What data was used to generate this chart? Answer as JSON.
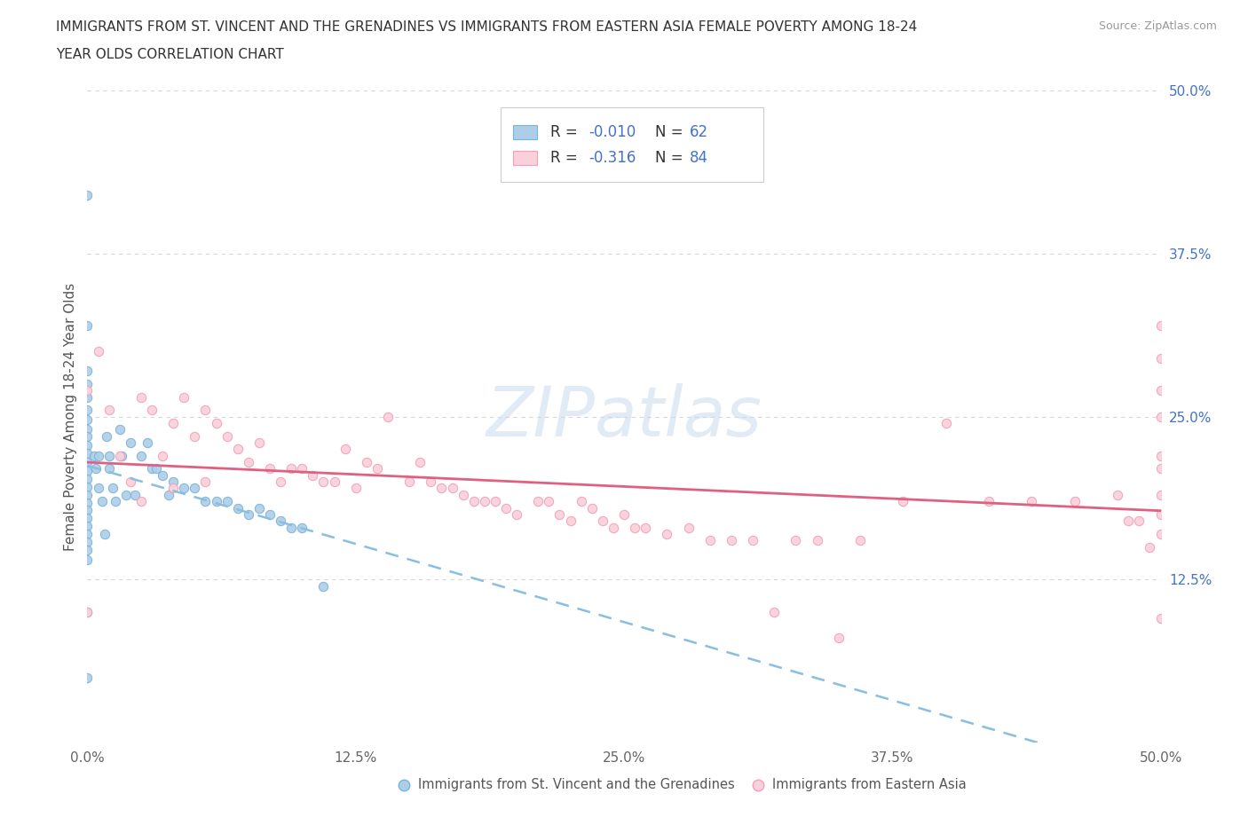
{
  "title_line1": "IMMIGRANTS FROM ST. VINCENT AND THE GRENADINES VS IMMIGRANTS FROM EASTERN ASIA FEMALE POVERTY AMONG 18-24",
  "title_line2": "YEAR OLDS CORRELATION CHART",
  "source_text": "Source: ZipAtlas.com",
  "ylabel": "Female Poverty Among 18-24 Year Olds",
  "xlim": [
    0.0,
    0.5
  ],
  "ylim": [
    0.0,
    0.5
  ],
  "xticks": [
    0.0,
    0.125,
    0.25,
    0.375,
    0.5
  ],
  "xticklabels": [
    "0.0%",
    "12.5%",
    "25.0%",
    "37.5%",
    "50.0%"
  ],
  "ytick_positions": [
    0.125,
    0.25,
    0.375,
    0.5
  ],
  "ytick_labels": [
    "12.5%",
    "25.0%",
    "37.5%",
    "50.0%"
  ],
  "watermark": "ZIPatlas",
  "color_blue": "#7ab3d8",
  "color_blue_fill": "#aecde8",
  "color_pink": "#f0a0b8",
  "color_pink_fill": "#fad0da",
  "color_trend_blue": "#88bfe0",
  "color_trend_pink": "#e06080",
  "background_color": "#ffffff",
  "grid_color": "#d8d8d8",
  "blue_x": [
    0.0,
    0.0,
    0.0,
    0.0,
    0.0,
    0.0,
    0.0,
    0.0,
    0.0,
    0.0,
    0.0,
    0.0,
    0.0,
    0.0,
    0.0,
    0.0,
    0.0,
    0.0,
    0.0,
    0.0,
    0.0,
    0.0,
    0.0,
    0.0,
    0.0,
    0.0,
    0.003,
    0.004,
    0.005,
    0.005,
    0.007,
    0.008,
    0.009,
    0.01,
    0.01,
    0.012,
    0.013,
    0.015,
    0.016,
    0.018,
    0.02,
    0.022,
    0.025,
    0.028,
    0.03,
    0.032,
    0.035,
    0.038,
    0.04,
    0.045,
    0.05,
    0.055,
    0.06,
    0.065,
    0.07,
    0.075,
    0.08,
    0.085,
    0.09,
    0.095,
    0.1,
    0.11
  ],
  "blue_y": [
    0.42,
    0.32,
    0.285,
    0.275,
    0.265,
    0.255,
    0.248,
    0.24,
    0.235,
    0.228,
    0.222,
    0.215,
    0.208,
    0.202,
    0.196,
    0.19,
    0.184,
    0.178,
    0.172,
    0.166,
    0.16,
    0.154,
    0.148,
    0.14,
    0.1,
    0.05,
    0.22,
    0.21,
    0.22,
    0.195,
    0.185,
    0.16,
    0.235,
    0.22,
    0.21,
    0.195,
    0.185,
    0.24,
    0.22,
    0.19,
    0.23,
    0.19,
    0.22,
    0.23,
    0.21,
    0.21,
    0.205,
    0.19,
    0.2,
    0.195,
    0.195,
    0.185,
    0.185,
    0.185,
    0.18,
    0.175,
    0.18,
    0.175,
    0.17,
    0.165,
    0.165,
    0.12
  ],
  "pink_x": [
    0.0,
    0.0,
    0.005,
    0.01,
    0.015,
    0.02,
    0.025,
    0.025,
    0.03,
    0.035,
    0.04,
    0.04,
    0.045,
    0.05,
    0.055,
    0.055,
    0.06,
    0.065,
    0.07,
    0.075,
    0.08,
    0.085,
    0.09,
    0.095,
    0.1,
    0.105,
    0.11,
    0.115,
    0.12,
    0.125,
    0.13,
    0.135,
    0.14,
    0.15,
    0.155,
    0.16,
    0.165,
    0.17,
    0.175,
    0.18,
    0.185,
    0.19,
    0.195,
    0.2,
    0.21,
    0.215,
    0.22,
    0.225,
    0.23,
    0.235,
    0.24,
    0.245,
    0.25,
    0.255,
    0.26,
    0.27,
    0.28,
    0.29,
    0.3,
    0.31,
    0.32,
    0.33,
    0.34,
    0.35,
    0.36,
    0.38,
    0.4,
    0.42,
    0.44,
    0.46,
    0.48,
    0.485,
    0.49,
    0.495,
    0.5,
    0.5,
    0.5,
    0.5,
    0.5,
    0.5,
    0.5,
    0.5,
    0.5,
    0.5
  ],
  "pink_y": [
    0.27,
    0.1,
    0.3,
    0.255,
    0.22,
    0.2,
    0.265,
    0.185,
    0.255,
    0.22,
    0.245,
    0.195,
    0.265,
    0.235,
    0.255,
    0.2,
    0.245,
    0.235,
    0.225,
    0.215,
    0.23,
    0.21,
    0.2,
    0.21,
    0.21,
    0.205,
    0.2,
    0.2,
    0.225,
    0.195,
    0.215,
    0.21,
    0.25,
    0.2,
    0.215,
    0.2,
    0.195,
    0.195,
    0.19,
    0.185,
    0.185,
    0.185,
    0.18,
    0.175,
    0.185,
    0.185,
    0.175,
    0.17,
    0.185,
    0.18,
    0.17,
    0.165,
    0.175,
    0.165,
    0.165,
    0.16,
    0.165,
    0.155,
    0.155,
    0.155,
    0.1,
    0.155,
    0.155,
    0.08,
    0.155,
    0.185,
    0.245,
    0.185,
    0.185,
    0.185,
    0.19,
    0.17,
    0.17,
    0.15,
    0.32,
    0.295,
    0.27,
    0.25,
    0.22,
    0.21,
    0.19,
    0.175,
    0.16,
    0.095
  ]
}
